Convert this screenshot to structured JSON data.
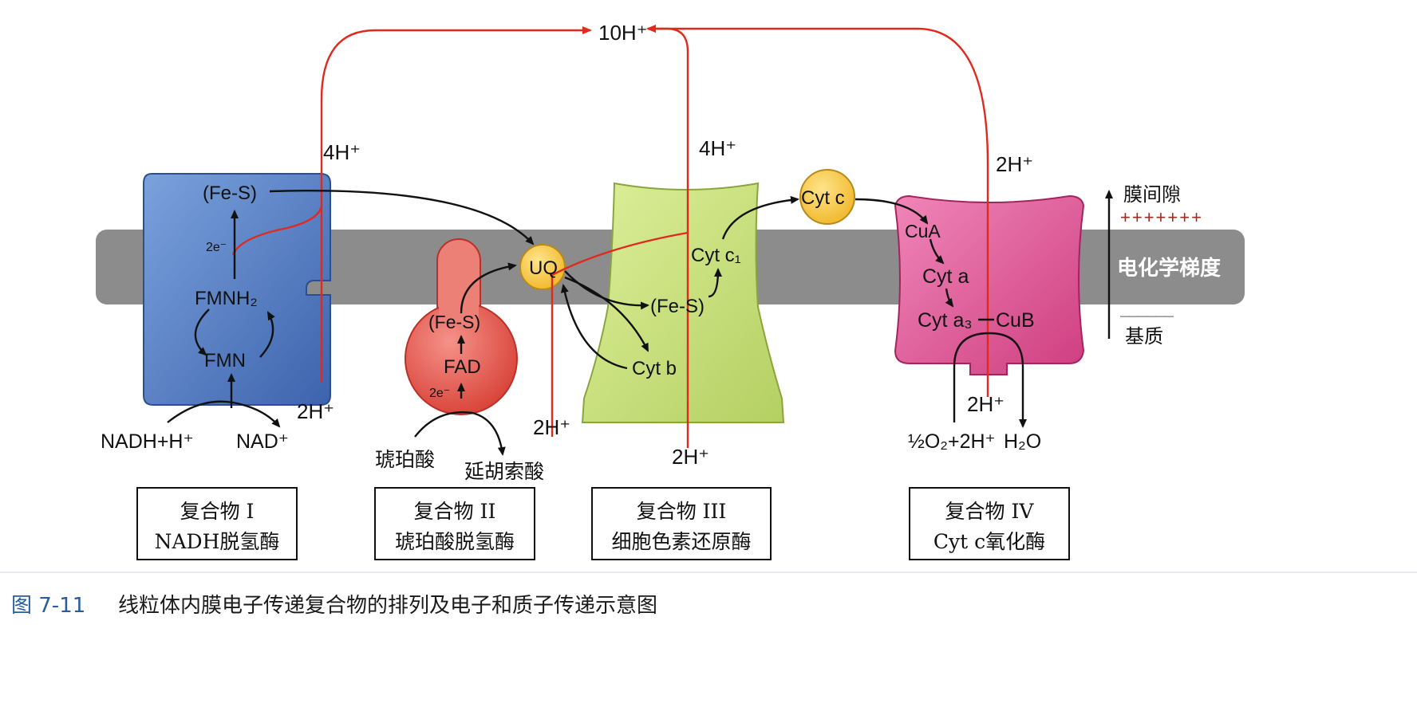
{
  "proton_labels": {
    "top": "10H⁺",
    "c1_lumen": "4H⁺",
    "c3_lumen": "4H⁺",
    "c4_lumen": "2H⁺",
    "c1_matrix": "2H⁺",
    "c2_matrix": "2H⁺",
    "c3_matrix": "2H⁺",
    "c4_inner": "2H⁺"
  },
  "complex1": {
    "fes": "(Fe-S)",
    "e2": "2e⁻",
    "fmnh2": "FMNH₂",
    "fmn": "FMN",
    "nadh": "NADH+H⁺",
    "nad": "NAD⁺",
    "box_line1": "复合物 I",
    "box_line2": "NADH脱氢酶"
  },
  "complex2": {
    "fes": "(Fe-S)",
    "fad": "FAD",
    "e2": "2e⁻",
    "succinate": "琥珀酸",
    "fumarate": "延胡索酸",
    "box_line1": "复合物 II",
    "box_line2": "琥珀酸脱氢酶"
  },
  "uq": "UQ",
  "complex3": {
    "fes": "(Fe-S)",
    "cytc1": "Cyt c₁",
    "cytb": "Cyt b",
    "box_line1": "复合物 III",
    "box_line2": "细胞色素还原酶"
  },
  "cytc": "Cyt c",
  "complex4": {
    "cua": "CuA",
    "cyta": "Cyt a",
    "cyta3": "Cyt a₃",
    "cub": "CuB",
    "o2": "½O₂+2H⁺",
    "h2o": "H₂O",
    "box_line1": "复合物 IV",
    "box_line2": "Cyt c氧化酶"
  },
  "legend": {
    "intermembrane": "膜间隙",
    "plus_signs": "+++++++",
    "gradient": "电化学梯度",
    "minus_signs": "——————",
    "matrix": "基质"
  },
  "caption": {
    "number": "图 7-11",
    "text": "线粒体内膜电子传递复合物的排列及电子和质子传递示意图"
  },
  "colors": {
    "membrane": "#8c8c8c",
    "complex1": "#5b82c4",
    "complex2": "#e8564c",
    "complex3": "#c6dd7a",
    "complex4": "#de5e98",
    "carrier": "#f2c23c",
    "proton_path": "#e02a1e",
    "electron_path": "#111111"
  }
}
